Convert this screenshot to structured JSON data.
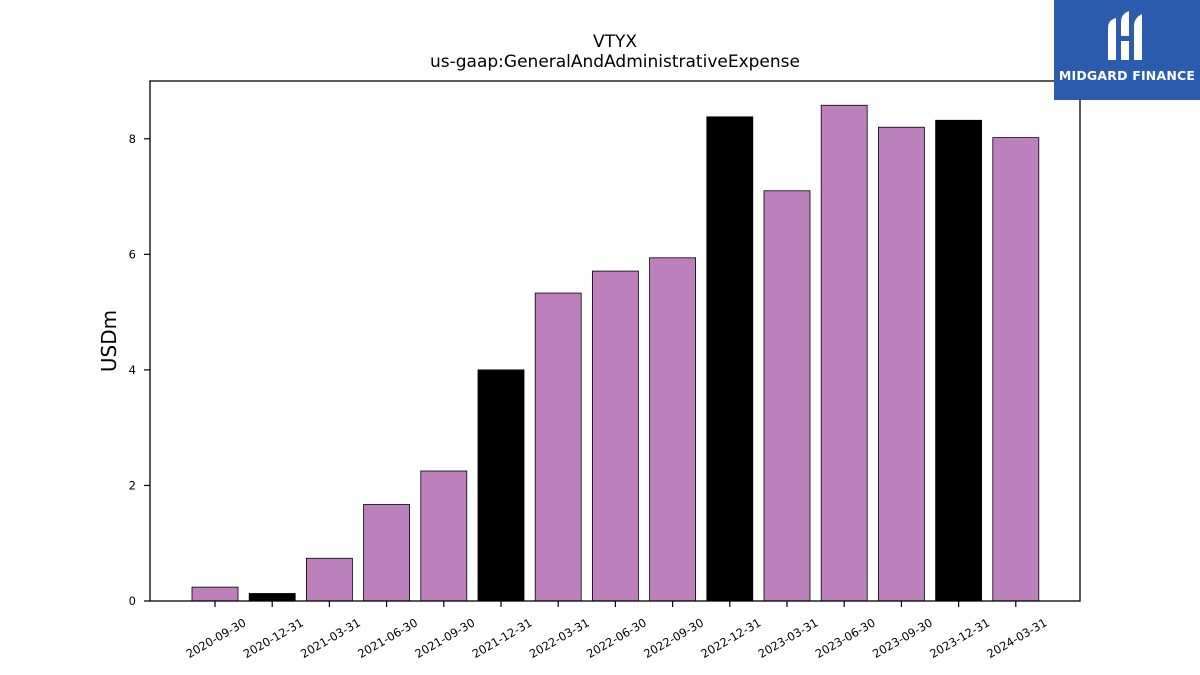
{
  "chart_data": {
    "type": "bar",
    "title": "VTYX",
    "subtitle": "us-gaap:GeneralAndAdministrativeExpense",
    "xlabel": "",
    "ylabel": "USDm",
    "ylim": [
      0,
      9
    ],
    "yticks": [
      0,
      2,
      4,
      6,
      8
    ],
    "categories": [
      "2020-09-30",
      "2020-12-31",
      "2021-03-31",
      "2021-06-30",
      "2021-09-30",
      "2021-12-31",
      "2022-03-31",
      "2022-06-30",
      "2022-09-30",
      "2022-12-31",
      "2023-03-31",
      "2023-06-30",
      "2023-09-30",
      "2023-12-31",
      "2024-03-31"
    ],
    "values": [
      0.24,
      0.13,
      0.74,
      1.67,
      2.25,
      4.0,
      5.33,
      5.71,
      5.94,
      8.38,
      7.1,
      8.58,
      8.2,
      8.32,
      8.02
    ],
    "bar_colors": [
      "#bc80bd",
      "#000000",
      "#bc80bd",
      "#bc80bd",
      "#bc80bd",
      "#000000",
      "#bc80bd",
      "#bc80bd",
      "#bc80bd",
      "#000000",
      "#bc80bd",
      "#bc80bd",
      "#bc80bd",
      "#000000",
      "#bc80bd"
    ],
    "grid": false,
    "legend": "none"
  },
  "logo": {
    "text": "MIDGARD FINANCE",
    "icon": "midgard-logo-icon",
    "color": "#2c5cae"
  }
}
